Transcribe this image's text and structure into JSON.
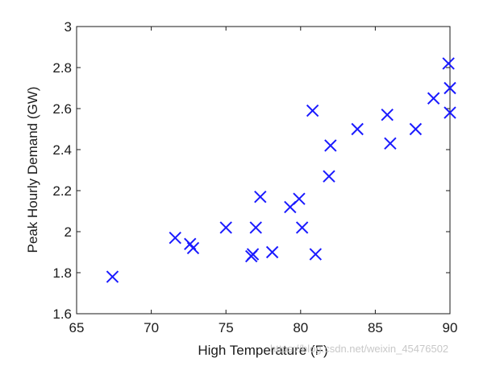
{
  "chart_data": {
    "type": "scatter",
    "title": "",
    "xlabel": "High Temperature (F)",
    "ylabel": "Peak Hourly Demand (GW)",
    "xlim": [
      65,
      90
    ],
    "ylim": [
      1.6,
      3.0
    ],
    "xticks": [
      "65",
      "70",
      "75",
      "80",
      "85",
      "90"
    ],
    "yticks": [
      "1.6",
      "1.8",
      "2",
      "2.2",
      "2.4",
      "2.6",
      "2.8",
      "3"
    ],
    "grid": false,
    "marker": "x",
    "marker_color": "#1a1aff",
    "points": [
      {
        "x": 67.4,
        "y": 1.78
      },
      {
        "x": 71.6,
        "y": 1.97
      },
      {
        "x": 72.6,
        "y": 1.94
      },
      {
        "x": 72.8,
        "y": 1.92
      },
      {
        "x": 75.0,
        "y": 2.02
      },
      {
        "x": 76.7,
        "y": 1.88
      },
      {
        "x": 76.8,
        "y": 1.89
      },
      {
        "x": 77.0,
        "y": 2.02
      },
      {
        "x": 77.3,
        "y": 2.17
      },
      {
        "x": 78.1,
        "y": 1.9
      },
      {
        "x": 79.3,
        "y": 2.12
      },
      {
        "x": 79.9,
        "y": 2.16
      },
      {
        "x": 80.1,
        "y": 2.02
      },
      {
        "x": 80.8,
        "y": 2.59
      },
      {
        "x": 81.0,
        "y": 1.89
      },
      {
        "x": 81.9,
        "y": 2.27
      },
      {
        "x": 82.0,
        "y": 2.42
      },
      {
        "x": 83.8,
        "y": 2.5
      },
      {
        "x": 85.8,
        "y": 2.57
      },
      {
        "x": 86.0,
        "y": 2.43
      },
      {
        "x": 87.7,
        "y": 2.5
      },
      {
        "x": 88.9,
        "y": 2.65
      },
      {
        "x": 89.9,
        "y": 2.82
      },
      {
        "x": 90.0,
        "y": 2.7
      },
      {
        "x": 90.0,
        "y": 2.58
      }
    ]
  },
  "watermark": "https://blog.csdn.net/weixin_45476502"
}
